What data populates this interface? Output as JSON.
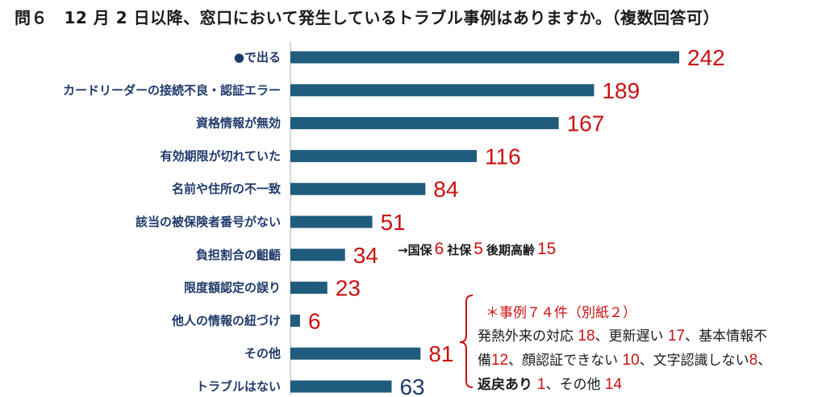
{
  "title": "問６　12 月 2 日以降、窓口において発生しているトラブル事例はありますか。（複数回答可）",
  "colors": {
    "bar": "#1f5c7e",
    "label": "#1f3a6b",
    "value": "#cc1111",
    "text": "#1a1a1a"
  },
  "chart_data": {
    "type": "bar",
    "orientation": "horizontal",
    "title": "問６　12 月 2 日以降、窓口において発生しているトラブル事例はありますか。（複数回答可）",
    "categories": [
      "●で出る",
      "カードリーダーの接続不良・認証エラー",
      "資格情報が無効",
      "有効期限が切れていた",
      "名前や住所の不一致",
      "該当の被保険者番号がない",
      "負担割合の齟齬",
      "限度額認定の誤り",
      "他人の情報の紐づけ",
      "その他",
      "トラブルはない"
    ],
    "values": [
      242,
      189,
      167,
      116,
      84,
      51,
      34,
      23,
      6,
      81,
      63
    ],
    "xlim": [
      0,
      242
    ],
    "grid": false,
    "legend": "none"
  },
  "breakdown": {
    "arrow": "→",
    "items": [
      {
        "label": "国保",
        "value": "6"
      },
      {
        "label": "社保",
        "value": "5"
      },
      {
        "label": "後期高齢",
        "value": "15"
      }
    ]
  },
  "note": {
    "header": "＊事例７４件（別紙２）",
    "lines": [
      [
        {
          "t": "発熱外来の対応 "
        },
        {
          "t": "18",
          "n": true
        },
        {
          "t": "、更新遅い "
        },
        {
          "t": "17",
          "n": true
        },
        {
          "t": "、基本情報不"
        }
      ],
      [
        {
          "t": "備"
        },
        {
          "t": "12",
          "n": true
        },
        {
          "t": "、顔認証できない "
        },
        {
          "t": "10",
          "n": true
        },
        {
          "t": "、文字認識しない"
        },
        {
          "t": "8",
          "n": true
        },
        {
          "t": "、"
        }
      ],
      [
        {
          "t": "返戻あり ",
          "b": true
        },
        {
          "t": "1",
          "n": true
        },
        {
          "t": "、その他 "
        },
        {
          "t": "14",
          "n": true
        }
      ]
    ]
  }
}
